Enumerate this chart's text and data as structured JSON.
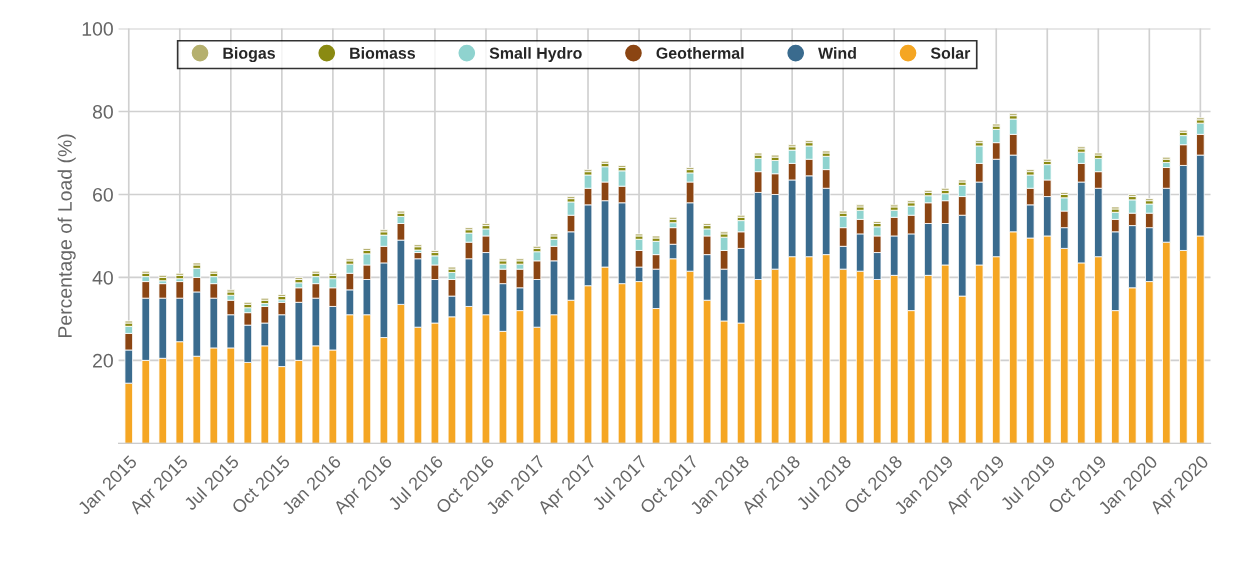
{
  "chart_data": {
    "type": "bar",
    "stacked": true,
    "ylabel": "Percentage of Load (%)",
    "categories": [
      "Jan 2015",
      null,
      null,
      "Apr 2015",
      null,
      null,
      "Jul 2015",
      null,
      null,
      "Oct 2015",
      null,
      null,
      "Jan 2016",
      null,
      null,
      "Apr 2016",
      null,
      null,
      "Jul 2016",
      null,
      null,
      "Oct 2016",
      null,
      null,
      "Jan 2017",
      null,
      null,
      "Apr 2017",
      null,
      null,
      "Jul 2017",
      null,
      null,
      "Oct 2017",
      null,
      null,
      "Jan 2018",
      null,
      null,
      "Apr 2018",
      null,
      null,
      "Jul 2018",
      null,
      null,
      "Oct 2018",
      null,
      null,
      "Jan 2019",
      null,
      null,
      "Apr 2019",
      null,
      null,
      "Jul 2019",
      null,
      null,
      "Oct 2019",
      null,
      null,
      "Jan 2020",
      null,
      null,
      "Apr 2020"
    ],
    "series": [
      {
        "name": "Solar",
        "color": "#f5a623",
        "values": [
          14.5,
          20,
          20.5,
          24.5,
          21,
          23,
          23,
          19.5,
          23.5,
          18.5,
          20,
          23.5,
          22.5,
          31,
          31,
          25.5,
          33.5,
          28,
          29,
          30.5,
          33,
          31,
          27,
          32,
          28,
          31,
          34.5,
          38,
          42.5,
          38.5,
          39,
          32.5,
          44.5,
          41.5,
          34.5,
          29.5,
          29,
          39.5,
          42,
          45,
          45,
          45.5,
          42,
          41.5,
          39.5,
          40.5,
          32,
          40.5,
          43,
          35.5,
          43,
          45,
          51,
          49.5,
          50,
          47,
          43.5,
          45,
          32,
          37.5,
          39,
          48.5,
          46.5,
          50
        ]
      },
      {
        "name": "Wind",
        "color": "#3a6b8e",
        "values": [
          8,
          15,
          14.5,
          10.5,
          15.5,
          12,
          8,
          9,
          5.5,
          12.5,
          14,
          11.5,
          10.5,
          6,
          8.5,
          18,
          15.5,
          16.5,
          10.5,
          5,
          11.5,
          15,
          11.5,
          5.5,
          11.5,
          13,
          16.5,
          19.5,
          16,
          19.5,
          3.5,
          9.5,
          3.5,
          16.5,
          11,
          12.5,
          18,
          21,
          18,
          18.5,
          19.5,
          16,
          5.5,
          9,
          6.5,
          9.5,
          18.5,
          12.5,
          10,
          19.5,
          20,
          23.5,
          18.5,
          8,
          9.5,
          5,
          19.5,
          16.5,
          19,
          15,
          13,
          13,
          20.5,
          19.5
        ]
      },
      {
        "name": "Geothermal",
        "color": "#8b4513",
        "values": [
          4,
          4,
          3.5,
          4,
          3.5,
          3.5,
          3.5,
          3,
          4,
          3,
          3.5,
          3.5,
          4.5,
          4,
          3.5,
          4,
          4,
          1.5,
          3.5,
          4,
          4,
          4,
          3.5,
          4.5,
          4.5,
          3.5,
          4,
          4,
          4.5,
          4,
          4,
          3.5,
          4,
          5,
          4.5,
          4.5,
          4,
          5,
          5,
          4,
          4,
          4.5,
          4.5,
          3.5,
          4,
          4.5,
          4.5,
          5,
          5.5,
          4.5,
          4.5,
          4,
          5,
          4,
          4,
          4,
          4.5,
          4,
          3,
          3,
          3.5,
          5,
          5,
          5
        ]
      },
      {
        "name": "Small Hydro",
        "color": "#8fd3cf",
        "values": [
          1.7,
          1.2,
          0.7,
          0.7,
          2.2,
          1.7,
          1.2,
          1.2,
          0.7,
          0.6,
          1.2,
          1.7,
          2.2,
          2.2,
          2.7,
          2.7,
          1.7,
          0.6,
          2.2,
          1.7,
          2.2,
          1.7,
          1.2,
          1.2,
          2.2,
          1.7,
          3.2,
          3.2,
          3.7,
          3.7,
          2.7,
          3.2,
          1.2,
          2.2,
          1.7,
          3.2,
          2.7,
          3.2,
          3.2,
          3.2,
          3.2,
          3.2,
          2.7,
          2.2,
          2.2,
          1.7,
          2.2,
          1.7,
          1.7,
          2.7,
          4.2,
          3.2,
          3.7,
          3.2,
          3.7,
          3.2,
          2.7,
          3.2,
          1.7,
          3.2,
          2.2,
          1.2,
          2.2,
          2.7
        ]
      },
      {
        "name": "Biomass",
        "color": "#8a8a12",
        "values": [
          0.8,
          0.8,
          0.8,
          0.8,
          0.8,
          0.8,
          0.8,
          0.8,
          0.8,
          0.8,
          0.8,
          0.8,
          0.8,
          0.8,
          0.8,
          0.8,
          0.8,
          0.8,
          0.8,
          0.8,
          0.8,
          0.8,
          0.8,
          0.8,
          0.8,
          0.8,
          0.8,
          0.8,
          0.8,
          0.8,
          0.8,
          0.8,
          0.8,
          0.8,
          0.8,
          0.8,
          0.8,
          0.8,
          0.8,
          0.8,
          0.8,
          0.8,
          0.8,
          0.8,
          0.8,
          0.8,
          0.8,
          0.8,
          0.8,
          0.8,
          0.8,
          0.8,
          0.8,
          0.8,
          0.8,
          0.8,
          0.8,
          0.8,
          0.8,
          0.8,
          0.8,
          0.8,
          0.8,
          0.8
        ]
      },
      {
        "name": "Biogas",
        "color": "#b5b06e",
        "values": [
          0.5,
          0.5,
          0.5,
          0.5,
          0.5,
          0.5,
          0.5,
          0.5,
          0.5,
          0.5,
          0.5,
          0.5,
          0.5,
          0.5,
          0.5,
          0.5,
          0.5,
          0.5,
          0.5,
          0.5,
          0.5,
          0.5,
          0.5,
          0.5,
          0.5,
          0.5,
          0.5,
          0.5,
          0.5,
          0.5,
          0.5,
          0.5,
          0.5,
          0.5,
          0.5,
          0.5,
          0.5,
          0.5,
          0.5,
          0.5,
          0.5,
          0.5,
          0.5,
          0.5,
          0.5,
          0.5,
          0.5,
          0.5,
          0.5,
          0.5,
          0.5,
          0.5,
          0.5,
          0.5,
          0.5,
          0.5,
          0.5,
          0.5,
          0.5,
          0.5,
          0.5,
          0.5,
          0.5,
          0.5
        ]
      }
    ],
    "ylim": [
      0,
      100
    ],
    "yticks": [
      20,
      40,
      60,
      80,
      100
    ],
    "grid": true,
    "legend": "top"
  }
}
